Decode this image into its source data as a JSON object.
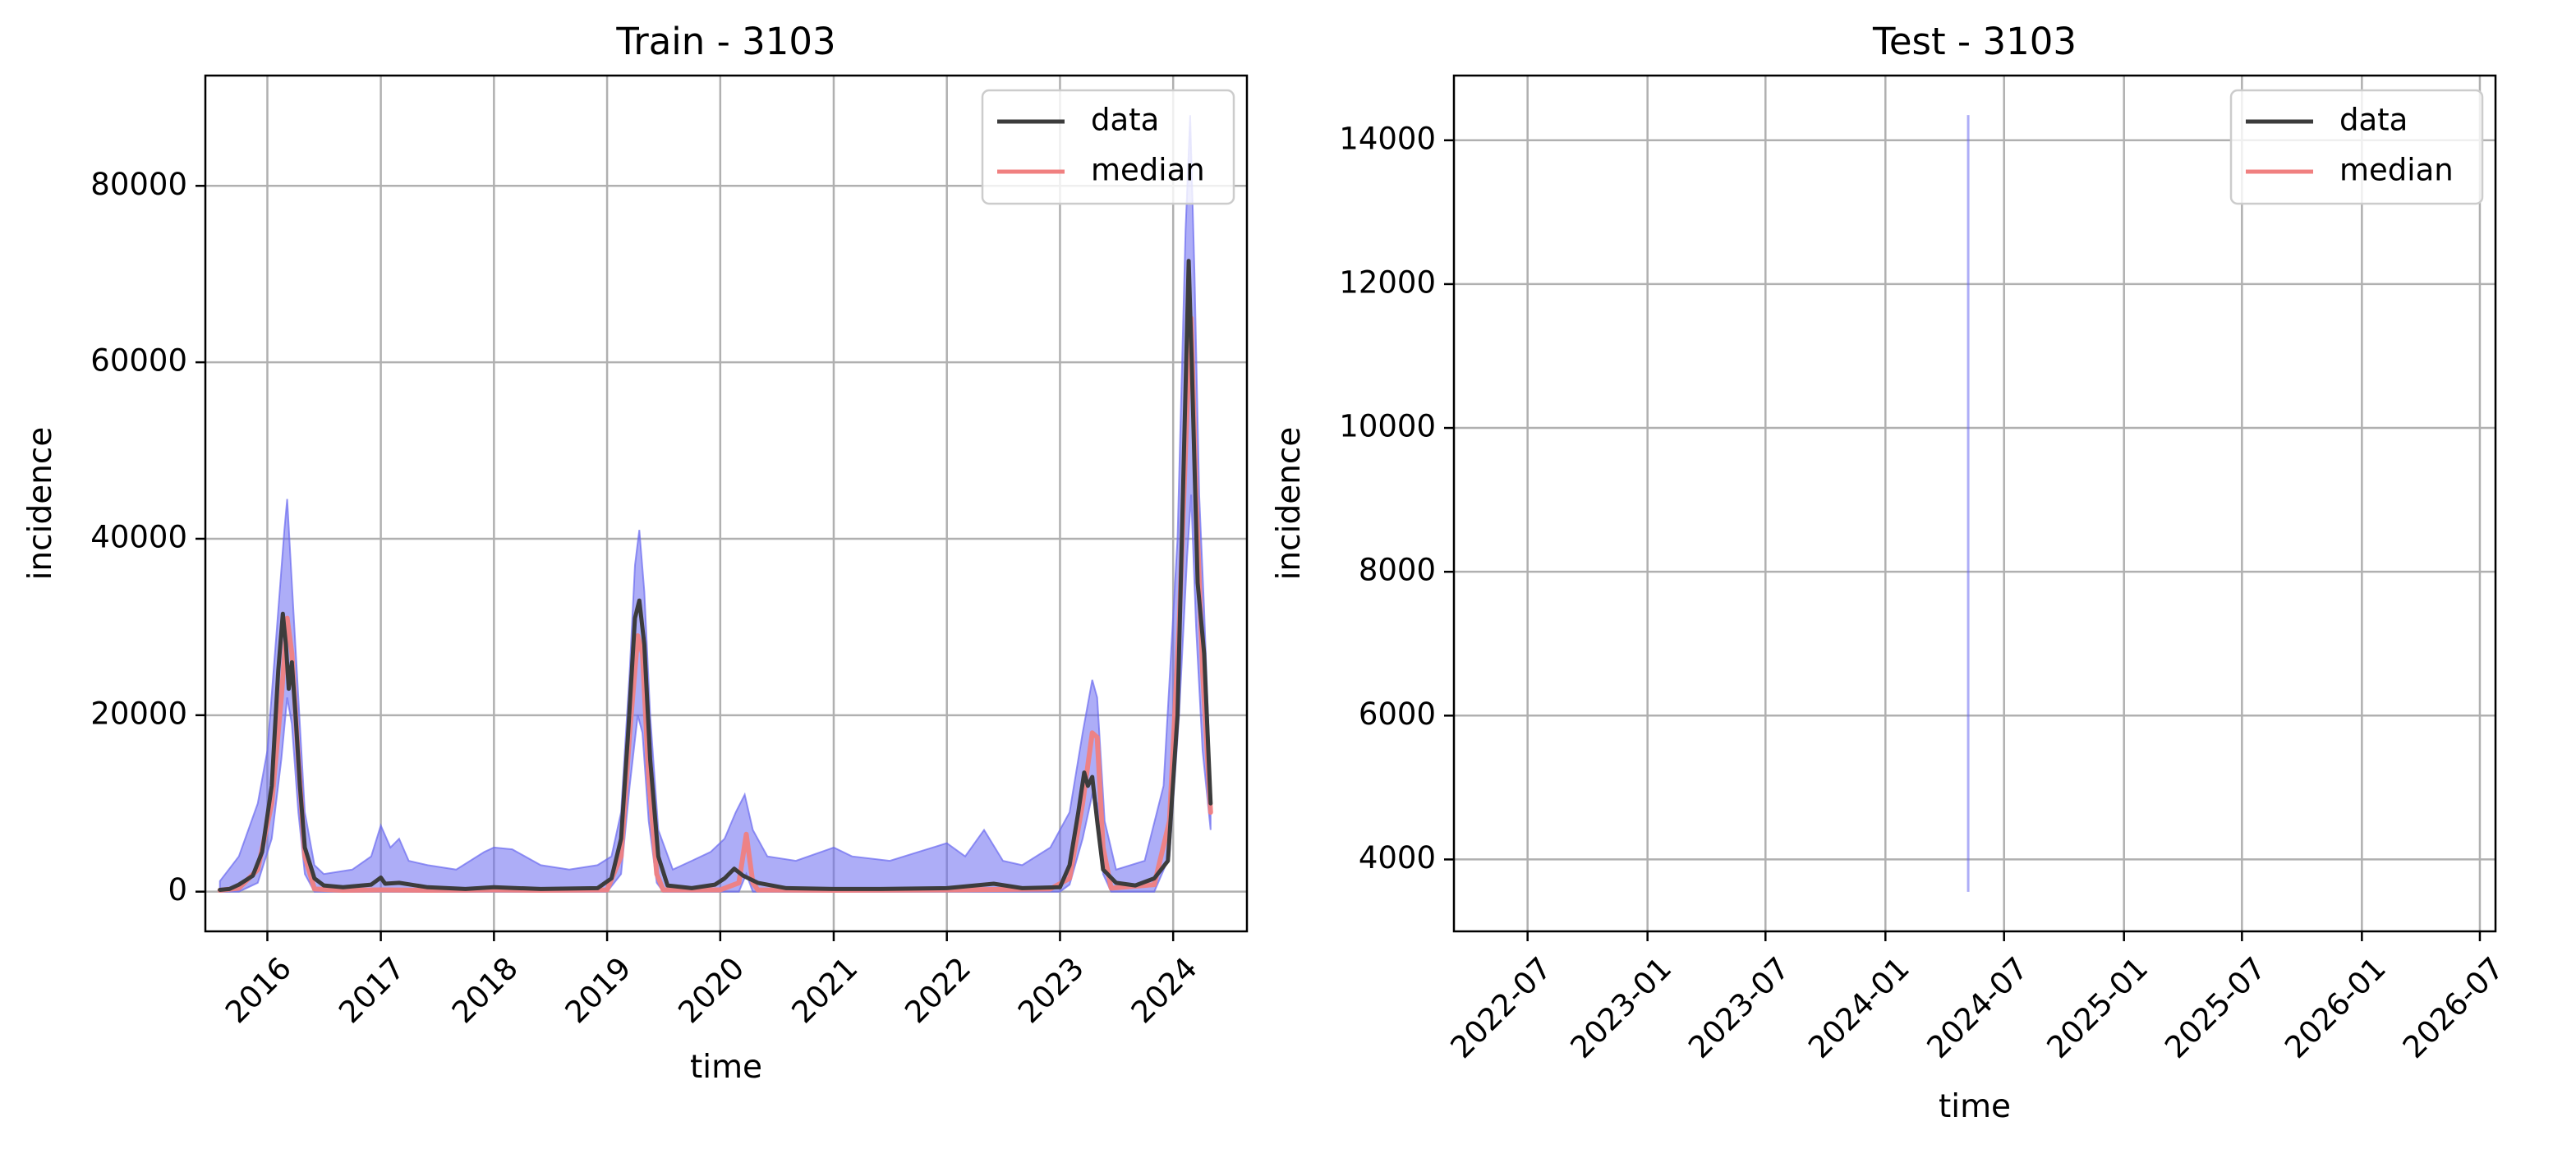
{
  "chart_data": [
    {
      "type": "line",
      "title": "Train - 3103",
      "xlabel": "time",
      "ylabel": "incidence",
      "xlim": [
        "2015-06-15",
        "2024-08-26"
      ],
      "ylim": [
        -4500,
        92500
      ],
      "x_ticks": [
        "2016",
        "2017",
        "2018",
        "2019",
        "2020",
        "2021",
        "2022",
        "2023",
        "2024"
      ],
      "x_tick_values": [
        "2016-01-01",
        "2017-01-01",
        "2018-01-01",
        "2019-01-01",
        "2020-01-01",
        "2021-01-01",
        "2022-01-01",
        "2023-01-01",
        "2024-01-01"
      ],
      "y_ticks": [
        "0",
        "20000",
        "40000",
        "60000",
        "80000"
      ],
      "y_tick_values": [
        0,
        20000,
        40000,
        60000,
        80000
      ],
      "grid": true,
      "legend_position": "top-right",
      "legend": [
        {
          "label": "data",
          "color": "#3c3c3c"
        },
        {
          "label": "median",
          "color": "#f08080"
        }
      ],
      "series": [
        {
          "name": "data",
          "color": "#3c3c3c",
          "points": [
            [
              "2015-08-01",
              200
            ],
            [
              "2015-09-01",
              300
            ],
            [
              "2015-10-01",
              800
            ],
            [
              "2015-11-15",
              1800
            ],
            [
              "2015-12-15",
              4500
            ],
            [
              "2016-01-15",
              12000
            ],
            [
              "2016-02-05",
              25000
            ],
            [
              "2016-02-20",
              31500
            ],
            [
              "2016-03-01",
              28000
            ],
            [
              "2016-03-10",
              23000
            ],
            [
              "2016-03-20",
              26000
            ],
            [
              "2016-04-01",
              20000
            ],
            [
              "2016-04-15",
              12000
            ],
            [
              "2016-05-01",
              5000
            ],
            [
              "2016-06-01",
              1500
            ],
            [
              "2016-07-01",
              700
            ],
            [
              "2016-09-01",
              500
            ],
            [
              "2016-12-01",
              800
            ],
            [
              "2017-01-01",
              1600
            ],
            [
              "2017-01-15",
              900
            ],
            [
              "2017-03-01",
              1000
            ],
            [
              "2017-06-01",
              500
            ],
            [
              "2017-10-01",
              300
            ],
            [
              "2018-01-01",
              500
            ],
            [
              "2018-06-01",
              300
            ],
            [
              "2018-12-01",
              400
            ],
            [
              "2019-01-15",
              1500
            ],
            [
              "2019-02-15",
              6000
            ],
            [
              "2019-03-10",
              18000
            ],
            [
              "2019-04-01",
              31000
            ],
            [
              "2019-04-15",
              33000
            ],
            [
              "2019-05-01",
              28000
            ],
            [
              "2019-05-20",
              15000
            ],
            [
              "2019-06-15",
              4000
            ],
            [
              "2019-07-15",
              700
            ],
            [
              "2019-10-01",
              400
            ],
            [
              "2019-12-15",
              800
            ],
            [
              "2020-01-15",
              1500
            ],
            [
              "2020-02-15",
              2600
            ],
            [
              "2020-03-15",
              1800
            ],
            [
              "2020-05-01",
              1000
            ],
            [
              "2020-08-01",
              400
            ],
            [
              "2021-01-01",
              300
            ],
            [
              "2021-06-01",
              300
            ],
            [
              "2022-01-01",
              400
            ],
            [
              "2022-06-01",
              900
            ],
            [
              "2022-09-01",
              400
            ],
            [
              "2023-01-01",
              500
            ],
            [
              "2023-02-01",
              3000
            ],
            [
              "2023-03-01",
              9000
            ],
            [
              "2023-03-20",
              13500
            ],
            [
              "2023-04-01",
              12000
            ],
            [
              "2023-04-15",
              13000
            ],
            [
              "2023-05-01",
              8000
            ],
            [
              "2023-05-20",
              2500
            ],
            [
              "2023-07-01",
              1000
            ],
            [
              "2023-09-01",
              700
            ],
            [
              "2023-11-01",
              1500
            ],
            [
              "2023-12-15",
              3500
            ],
            [
              "2024-01-15",
              20000
            ],
            [
              "2024-02-05",
              50000
            ],
            [
              "2024-02-20",
              71500
            ],
            [
              "2024-03-01",
              60000
            ],
            [
              "2024-03-20",
              35000
            ],
            [
              "2024-04-10",
              27000
            ],
            [
              "2024-05-01",
              10000
            ]
          ]
        },
        {
          "name": "median",
          "color": "#f08080",
          "points": [
            [
              "2015-08-01",
              150
            ],
            [
              "2015-10-01",
              400
            ],
            [
              "2015-12-01",
              2500
            ],
            [
              "2016-01-15",
              10000
            ],
            [
              "2016-02-15",
              22000
            ],
            [
              "2016-03-05",
              31000
            ],
            [
              "2016-03-20",
              27000
            ],
            [
              "2016-04-10",
              15000
            ],
            [
              "2016-05-01",
              4000
            ],
            [
              "2016-06-01",
              300
            ],
            [
              "2016-09-01",
              150
            ],
            [
              "2017-01-01",
              200
            ],
            [
              "2017-06-01",
              150
            ],
            [
              "2018-01-01",
              200
            ],
            [
              "2018-06-01",
              150
            ],
            [
              "2019-01-01",
              200
            ],
            [
              "2019-02-15",
              4000
            ],
            [
              "2019-03-15",
              18000
            ],
            [
              "2019-04-10",
              29000
            ],
            [
              "2019-04-25",
              27000
            ],
            [
              "2019-05-15",
              13000
            ],
            [
              "2019-06-10",
              2000
            ],
            [
              "2019-07-01",
              200
            ],
            [
              "2020-01-01",
              200
            ],
            [
              "2020-03-01",
              1000
            ],
            [
              "2020-03-25",
              6500
            ],
            [
              "2020-04-15",
              1000
            ],
            [
              "2020-05-01",
              200
            ],
            [
              "2021-01-01",
              150
            ],
            [
              "2022-01-01",
              200
            ],
            [
              "2022-12-01",
              300
            ],
            [
              "2023-02-01",
              1500
            ],
            [
              "2023-03-15",
              10000
            ],
            [
              "2023-04-15",
              18000
            ],
            [
              "2023-05-01",
              17500
            ],
            [
              "2023-05-20",
              5000
            ],
            [
              "2023-06-15",
              400
            ],
            [
              "2023-11-01",
              800
            ],
            [
              "2023-12-20",
              8000
            ],
            [
              "2024-01-20",
              30000
            ],
            [
              "2024-02-15",
              55000
            ],
            [
              "2024-02-28",
              65000
            ],
            [
              "2024-03-15",
              45000
            ],
            [
              "2024-04-05",
              25000
            ],
            [
              "2024-05-01",
              9000
            ]
          ]
        },
        {
          "name": "",
          "type": "band",
          "color": "#6a6af0",
          "upper": [
            [
              "2015-08-01",
              1200
            ],
            [
              "2015-10-01",
              4000
            ],
            [
              "2015-12-01",
              10000
            ],
            [
              "2016-01-01",
              16000
            ],
            [
              "2016-02-01",
              30000
            ],
            [
              "2016-02-25",
              41000
            ],
            [
              "2016-03-05",
              44500
            ],
            [
              "2016-03-20",
              35000
            ],
            [
              "2016-04-10",
              22000
            ],
            [
              "2016-05-01",
              9000
            ],
            [
              "2016-06-01",
              3000
            ],
            [
              "2016-07-01",
              2000
            ],
            [
              "2016-10-01",
              2500
            ],
            [
              "2016-12-01",
              4000
            ],
            [
              "2017-01-01",
              7500
            ],
            [
              "2017-02-01",
              5000
            ],
            [
              "2017-03-01",
              6000
            ],
            [
              "2017-04-01",
              3500
            ],
            [
              "2017-06-01",
              3000
            ],
            [
              "2017-09-01",
              2500
            ],
            [
              "2017-12-01",
              4500
            ],
            [
              "2018-01-01",
              5000
            ],
            [
              "2018-03-01",
              4800
            ],
            [
              "2018-06-01",
              3000
            ],
            [
              "2018-09-01",
              2500
            ],
            [
              "2018-12-01",
              3000
            ],
            [
              "2019-01-15",
              4000
            ],
            [
              "2019-02-15",
              9000
            ],
            [
              "2019-03-15",
              25000
            ],
            [
              "2019-04-01",
              37000
            ],
            [
              "2019-04-15",
              41000
            ],
            [
              "2019-05-01",
              34000
            ],
            [
              "2019-05-20",
              20000
            ],
            [
              "2019-06-15",
              7000
            ],
            [
              "2019-08-01",
              2500
            ],
            [
              "2019-10-01",
              3500
            ],
            [
              "2019-12-01",
              4500
            ],
            [
              "2020-01-15",
              6000
            ],
            [
              "2020-02-20",
              9000
            ],
            [
              "2020-03-20",
              11000
            ],
            [
              "2020-04-15",
              7000
            ],
            [
              "2020-06-01",
              4000
            ],
            [
              "2020-09-01",
              3500
            ],
            [
              "2021-01-01",
              5000
            ],
            [
              "2021-03-01",
              4000
            ],
            [
              "2021-07-01",
              3500
            ],
            [
              "2021-10-01",
              4500
            ],
            [
              "2022-01-01",
              5500
            ],
            [
              "2022-03-01",
              4000
            ],
            [
              "2022-05-01",
              7000
            ],
            [
              "2022-07-01",
              3500
            ],
            [
              "2022-09-01",
              3000
            ],
            [
              "2022-12-01",
              5000
            ],
            [
              "2023-02-01",
              9000
            ],
            [
              "2023-03-15",
              18000
            ],
            [
              "2023-04-15",
              24000
            ],
            [
              "2023-05-01",
              22000
            ],
            [
              "2023-05-25",
              8000
            ],
            [
              "2023-07-01",
              2500
            ],
            [
              "2023-10-01",
              3500
            ],
            [
              "2023-12-01",
              12000
            ],
            [
              "2024-01-15",
              40000
            ],
            [
              "2024-02-10",
              75000
            ],
            [
              "2024-02-25",
              88000
            ],
            [
              "2024-03-10",
              70000
            ],
            [
              "2024-03-25",
              45000
            ],
            [
              "2024-04-10",
              32000
            ],
            [
              "2024-05-01",
              12000
            ]
          ],
          "lower": [
            [
              "2015-08-01",
              0
            ],
            [
              "2015-10-01",
              0
            ],
            [
              "2015-12-01",
              1000
            ],
            [
              "2016-01-15",
              6000
            ],
            [
              "2016-02-15",
              15000
            ],
            [
              "2016-03-05",
              22000
            ],
            [
              "2016-03-20",
              19000
            ],
            [
              "2016-04-10",
              9000
            ],
            [
              "2016-05-01",
              2000
            ],
            [
              "2016-06-01",
              0
            ],
            [
              "2017-01-01",
              0
            ],
            [
              "2018-01-01",
              0
            ],
            [
              "2019-01-01",
              0
            ],
            [
              "2019-02-15",
              2000
            ],
            [
              "2019-03-15",
              12000
            ],
            [
              "2019-04-10",
              20000
            ],
            [
              "2019-04-25",
              18000
            ],
            [
              "2019-05-15",
              8000
            ],
            [
              "2019-06-10",
              1000
            ],
            [
              "2019-07-01",
              0
            ],
            [
              "2020-03-01",
              0
            ],
            [
              "2020-03-25",
              2000
            ],
            [
              "2020-04-15",
              0
            ],
            [
              "2021-01-01",
              0
            ],
            [
              "2022-01-01",
              0
            ],
            [
              "2023-01-01",
              0
            ],
            [
              "2023-02-01",
              800
            ],
            [
              "2023-03-15",
              6000
            ],
            [
              "2023-04-15",
              11000
            ],
            [
              "2023-05-01",
              10000
            ],
            [
              "2023-05-20",
              2000
            ],
            [
              "2023-06-15",
              0
            ],
            [
              "2023-11-01",
              0
            ],
            [
              "2023-12-20",
              4000
            ],
            [
              "2024-01-20",
              20000
            ],
            [
              "2024-02-15",
              38000
            ],
            [
              "2024-02-28",
              45000
            ],
            [
              "2024-03-15",
              30000
            ],
            [
              "2024-04-05",
              16000
            ],
            [
              "2024-05-01",
              7000
            ]
          ]
        }
      ]
    },
    {
      "type": "line",
      "title": "Test - 3103",
      "xlabel": "time",
      "ylabel": "incidence",
      "xlim": [
        "2022-03-10",
        "2026-07-25"
      ],
      "ylim": [
        3000,
        14900
      ],
      "x_ticks": [
        "2022-07",
        "2023-01",
        "2023-07",
        "2024-01",
        "2024-07",
        "2025-01",
        "2025-07",
        "2026-01",
        "2026-07"
      ],
      "x_tick_values": [
        "2022-07-01",
        "2023-01-01",
        "2023-07-01",
        "2024-01-01",
        "2024-07-01",
        "2025-01-01",
        "2025-07-01",
        "2026-01-01",
        "2026-07-01"
      ],
      "y_ticks": [
        "4000",
        "6000",
        "8000",
        "10000",
        "12000",
        "14000"
      ],
      "y_tick_values": [
        4000,
        6000,
        8000,
        10000,
        12000,
        14000
      ],
      "grid": true,
      "legend_position": "top-right",
      "legend": [
        {
          "label": "data",
          "color": "#3c3c3c"
        },
        {
          "label": "median",
          "color": "#f08080"
        }
      ],
      "series": [
        {
          "name": "",
          "type": "band",
          "color": "#6a6af0",
          "x": "2024-05-07",
          "lower": 3550,
          "upper": 14350
        }
      ]
    }
  ]
}
